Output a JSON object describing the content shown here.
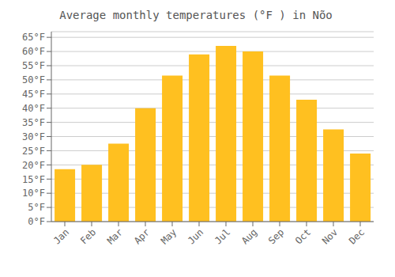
{
  "chart_data": {
    "type": "bar",
    "title": "Average monthly temperatures (°F ) in Nõo",
    "categories": [
      "Jan",
      "Feb",
      "Mar",
      "Apr",
      "May",
      "Jun",
      "Jul",
      "Aug",
      "Sep",
      "Oct",
      "Nov",
      "Dec"
    ],
    "values": [
      18.5,
      20.0,
      27.5,
      40.0,
      51.5,
      59.0,
      62.0,
      60.0,
      51.5,
      43.0,
      32.5,
      24.0
    ],
    "color": "#FFC020",
    "ylim": [
      0,
      67
    ],
    "yticks": [
      {
        "value": 0,
        "label": "0°F"
      },
      {
        "value": 5,
        "label": "5°F"
      },
      {
        "value": 10,
        "label": "10°F"
      },
      {
        "value": 15,
        "label": "15°F"
      },
      {
        "value": 20,
        "label": "20°F"
      },
      {
        "value": 25,
        "label": "25°F"
      },
      {
        "value": 30,
        "label": "30°F"
      },
      {
        "value": 35,
        "label": "35°F"
      },
      {
        "value": 40,
        "label": "40°F"
      },
      {
        "value": 45,
        "label": "45°F"
      },
      {
        "value": 50,
        "label": "50°F"
      },
      {
        "value": 55,
        "label": "55°F"
      },
      {
        "value": 60,
        "label": "60°F"
      },
      {
        "value": 65,
        "label": "65°F"
      }
    ],
    "grid": true
  }
}
